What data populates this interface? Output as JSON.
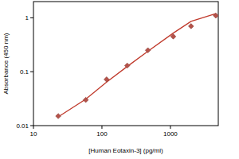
{
  "chart_data": {
    "type": "scatter",
    "x_label": "[Human Eotaxin-3] (pg/ml)",
    "y_label": "Absorbance (450 nm)",
    "log": true,
    "x": [
      23,
      58,
      117,
      234,
      469,
      1100,
      2000,
      4600
    ],
    "series": [
      {
        "type": "scatter",
        "marker": "diamond",
        "color": "#b5524a",
        "values": [
          0.015,
          0.03,
          0.072,
          0.13,
          0.25,
          0.45,
          0.7,
          1.1
        ]
      },
      {
        "type": "line",
        "line_style": "solid",
        "color": "#c0392b",
        "values": [
          0.0145,
          0.031,
          0.064,
          0.125,
          0.24,
          0.52,
          0.86,
          1.2
        ]
      }
    ],
    "xlim": [
      10,
      5000
    ],
    "xticks": [
      10,
      100,
      1000
    ],
    "ylim": [
      0.01,
      2
    ],
    "yticks": [
      0.01,
      0.1,
      1
    ],
    "grid": false
  }
}
